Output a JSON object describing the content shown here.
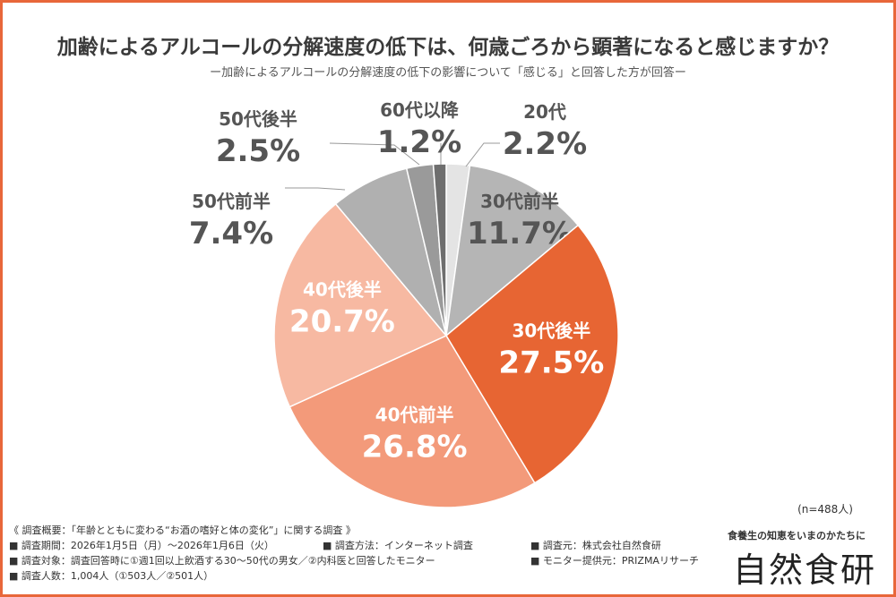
{
  "title": "加齢によるアルコールの分解速度の低下は、何歳ごろから顕著になると感じますか？",
  "subtitle": "ー加齢によるアルコールの分解速度の低下の影響について「感じる」と回答した方が回答ー",
  "sample_size": "(n=488人)",
  "colors": {
    "frame": "#e8673a"
  },
  "chart_data": {
    "type": "pie",
    "title": "加齢によるアルコールの分解速度の低下は、何歳ごろから顕著になると感じますか？",
    "slices": [
      {
        "label": "20代",
        "value": 2.2,
        "value_label": "2.2%",
        "color": "#e4e4e4"
      },
      {
        "label": "30代前半",
        "value": 11.7,
        "value_label": "11.7%",
        "color": "#b5b5b5"
      },
      {
        "label": "30代後半",
        "value": 27.5,
        "value_label": "27.5%",
        "color": "#e76533"
      },
      {
        "label": "40代前半",
        "value": 26.8,
        "value_label": "26.8%",
        "color": "#f39a7a"
      },
      {
        "label": "40代後半",
        "value": 20.7,
        "value_label": "20.7%",
        "color": "#f7b9a2"
      },
      {
        "label": "50代前半",
        "value": 7.4,
        "value_label": "7.4%",
        "color": "#b0b0b0"
      },
      {
        "label": "50代後半",
        "value": 2.5,
        "value_label": "2.5%",
        "color": "#9a9a9a"
      },
      {
        "label": "60代以降",
        "value": 1.2,
        "value_label": "1.2%",
        "color": "#6e6e6e"
      }
    ],
    "start_angle_deg": 0,
    "direction": "clockwise"
  },
  "footer": {
    "heading": "《 調査概要：「年齢とともに変わる“お酒の嗜好と体の変化”」に関する調査 》",
    "period": "■ 調査期間：2026年1月5日（月）〜2026年1月6日（火）",
    "method": "■ 調査方法：インターネット調査",
    "organizer": "■ 調査元：株式会社自然食研",
    "target": "■ 調査対象：調査回答時に①週1回以上飲酒する30〜50代の男女／②内科医と回答したモニター",
    "monitor": "■ モニター提供元：PRIZMAリサーチ",
    "respondents": "■ 調査人数：1,004人（①503人／②501人）"
  },
  "logo": {
    "tagline": "食養生の知恵をいまのかたちに",
    "name": "自然食研"
  }
}
